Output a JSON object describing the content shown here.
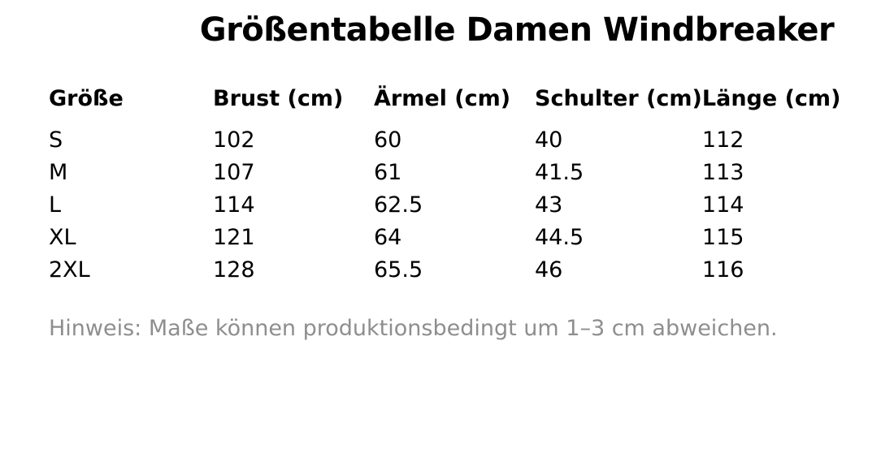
{
  "title": "Größentabelle Damen Windbreaker",
  "table": {
    "headers": [
      "Größe",
      "Brust (cm)",
      "Ärmel (cm)",
      "Schulter (cm)",
      "Länge (cm)"
    ],
    "rows": [
      [
        "S",
        "102",
        "60",
        "40",
        "112"
      ],
      [
        "M",
        "107",
        "61",
        "41.5",
        "113"
      ],
      [
        "L",
        "114",
        "62.5",
        "43",
        "114"
      ],
      [
        "XL",
        "121",
        "64",
        "44.5",
        "115"
      ],
      [
        "2XL",
        "128",
        "65.5",
        "46",
        "116"
      ]
    ]
  },
  "note": "Hinweis: Maße können produktionsbedingt um 1–3 cm abweichen.",
  "colors": {
    "background": "#ffffff",
    "text": "#000000",
    "note_text": "#8e8e8e"
  }
}
